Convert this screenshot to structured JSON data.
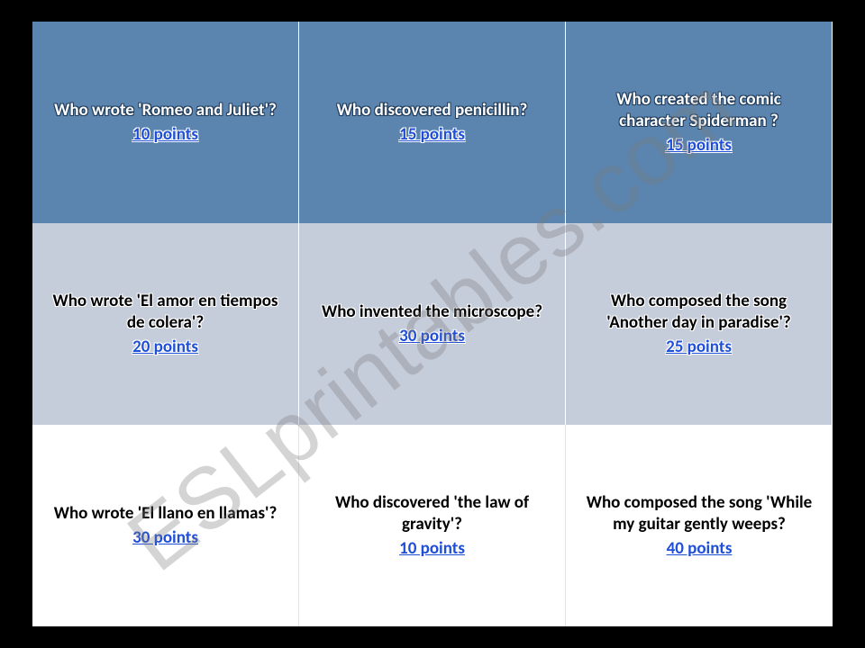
{
  "watermark": "ESLprintables.com",
  "grid": {
    "rows": [
      {
        "style": "row1",
        "cells": [
          {
            "question": "Who wrote 'Romeo and Juliet'?",
            "points": "10 points"
          },
          {
            "question": "Who discovered penicillin?",
            "points": "15 points"
          },
          {
            "question": "Who created the comic character Spiderman ?",
            "points": "15 points"
          }
        ]
      },
      {
        "style": "row2",
        "cells": [
          {
            "question": "Who wrote 'El amor en tiempos de colera'?",
            "points": "20 points"
          },
          {
            "question": "Who invented the microscope?",
            "points": "30 points"
          },
          {
            "question": "Who composed the song 'Another day in paradise'?",
            "points": "25 points"
          }
        ]
      },
      {
        "style": "row3",
        "cells": [
          {
            "question": "Who wrote 'El llano en llamas'?",
            "points": "30 points"
          },
          {
            "question": "Who discovered 'the law of gravity'?",
            "points": "10 points"
          },
          {
            "question": "Who composed the song 'While my guitar gently weeps?",
            "points": "40 points"
          }
        ]
      }
    ]
  },
  "colors": {
    "row1_bg": "#5b85af",
    "row2_bg": "#c5ccda",
    "row3_bg": "#ffffff",
    "points_link": "#1f4fd6",
    "page_bg": "#000000"
  }
}
